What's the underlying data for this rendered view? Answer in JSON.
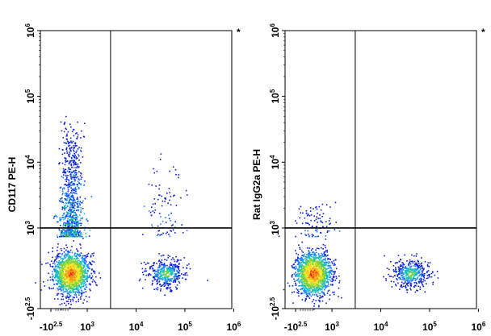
{
  "chart_data": [
    {
      "type": "scatter",
      "subtype": "flow-cytometry-density-dot-plot",
      "ylabel": "CD117 PE-H",
      "xlabel": "",
      "corner_mark": "*",
      "x_scale": "biexponential",
      "y_scale": "biexponential",
      "x_ticks": [
        {
          "base": "-10",
          "exp": "2.5",
          "value": -316
        },
        {
          "base": "10",
          "exp": "3",
          "value": 1000
        },
        {
          "base": "10",
          "exp": "4",
          "value": 10000
        },
        {
          "base": "10",
          "exp": "5",
          "value": 100000
        },
        {
          "base": "10",
          "exp": "6",
          "value": 1000000
        }
      ],
      "y_ticks": [
        {
          "base": "-10",
          "exp": "2.5",
          "value": -316
        },
        {
          "base": "10",
          "exp": "3",
          "value": 1000
        },
        {
          "base": "10",
          "exp": "4",
          "value": 10000
        },
        {
          "base": "10",
          "exp": "5",
          "value": 100000
        },
        {
          "base": "10",
          "exp": "6",
          "value": 1000000
        }
      ],
      "xlim": [
        -316,
        1000000
      ],
      "ylim": [
        -316,
        1000000
      ],
      "gate_x": 3000,
      "gate_y": 1000,
      "populations": [
        {
          "x_center": 400,
          "y_center": 50,
          "size": "large",
          "density": "high"
        },
        {
          "x_center": 400,
          "y_spread_to": 60000,
          "density": "medium"
        },
        {
          "x_center": 40000,
          "y_center": 50,
          "density": "medium"
        },
        {
          "x_center": 40000,
          "y_spread_to": 15000,
          "density": "low"
        }
      ]
    },
    {
      "type": "scatter",
      "subtype": "flow-cytometry-density-dot-plot",
      "ylabel": "Rat IgG2a PE-H",
      "xlabel": "",
      "corner_mark": "*",
      "x_scale": "biexponential",
      "y_scale": "biexponential",
      "x_ticks": [
        {
          "base": "-10",
          "exp": "2.5",
          "value": -316
        },
        {
          "base": "10",
          "exp": "3",
          "value": 1000
        },
        {
          "base": "10",
          "exp": "4",
          "value": 10000
        },
        {
          "base": "10",
          "exp": "5",
          "value": 100000
        },
        {
          "base": "10",
          "exp": "6",
          "value": 1000000
        }
      ],
      "y_ticks": [
        {
          "base": "-10",
          "exp": "2.5",
          "value": -316
        },
        {
          "base": "10",
          "exp": "3",
          "value": 1000
        },
        {
          "base": "10",
          "exp": "4",
          "value": 10000
        },
        {
          "base": "10",
          "exp": "5",
          "value": 100000
        },
        {
          "base": "10",
          "exp": "6",
          "value": 1000000
        }
      ],
      "xlim": [
        -316,
        1000000
      ],
      "ylim": [
        -316,
        1000000
      ],
      "gate_x": 3000,
      "gate_y": 1000,
      "populations": [
        {
          "x_center": 300,
          "y_center": 50,
          "size": "large",
          "density": "high"
        },
        {
          "x_center": 300,
          "y_spread_to": 3000,
          "density": "low"
        },
        {
          "x_center": 40000,
          "y_center": 50,
          "density": "medium"
        }
      ]
    }
  ]
}
